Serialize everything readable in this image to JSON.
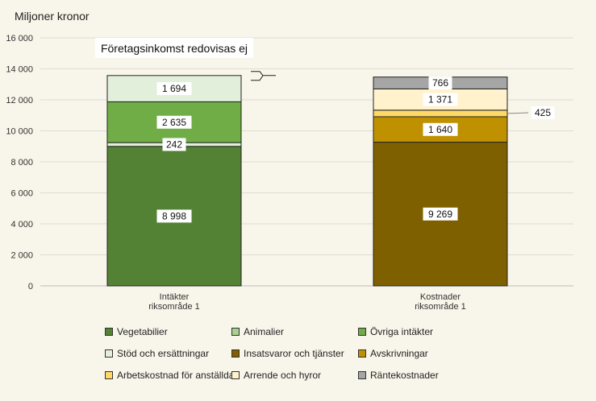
{
  "chart_data": {
    "type": "bar",
    "stacked": true,
    "ylabel": "Miljoner kronor",
    "ylim": [
      0,
      16000
    ],
    "yticks": [
      0,
      2000,
      4000,
      6000,
      8000,
      10000,
      12000,
      14000,
      16000
    ],
    "ytick_labels": [
      "0",
      "2 000",
      "4 000",
      "6 000",
      "8 000",
      "10 000",
      "12 000",
      "14 000",
      "16 000"
    ],
    "grid": true,
    "categories": [
      "Intäkter riksområde 1",
      "Kostnader riksområde 1"
    ],
    "category_lines": [
      [
        "Intäkter",
        "riksområde 1"
      ],
      [
        "Kostnader",
        "riksområde 1"
      ]
    ],
    "annotation": "Företagsinkomst redovisas ej",
    "series": [
      {
        "name": "Vegetabilier",
        "color": "#548235",
        "values": [
          8998,
          0
        ],
        "labels": [
          "8 998",
          ""
        ]
      },
      {
        "name": "Animalier",
        "color": "#a9d08e",
        "values": [
          0,
          0
        ],
        "labels": [
          "",
          ""
        ]
      },
      {
        "name": "Övriga intäkter",
        "color": "#70ad47",
        "values": [
          2635,
          0
        ],
        "labels": [
          "2 635",
          ""
        ]
      },
      {
        "name": "Stöd och ersättningar",
        "color": "#e2efda",
        "values": [
          1694,
          0
        ],
        "labels": [
          "1 694",
          ""
        ]
      },
      {
        "name": "Insatsvaror och tjänster",
        "color": "#7f6000",
        "values": [
          0,
          9269
        ],
        "labels": [
          "",
          "9 269"
        ]
      },
      {
        "name": "Avskrivningar",
        "color": "#bf9000",
        "values": [
          0,
          1640
        ],
        "labels": [
          "",
          "1 640"
        ]
      },
      {
        "name": "Arbetskostnad för anställda",
        "color": "#ffd966",
        "values": [
          0,
          425
        ],
        "labels": [
          "",
          "425"
        ]
      },
      {
        "name": "Arrende och hyror",
        "color": "#fff2cc",
        "values": [
          0,
          1371
        ],
        "labels": [
          "",
          "1 371"
        ]
      },
      {
        "name": "Räntekostnader",
        "color": "#a6a6a6",
        "values": [
          0,
          766
        ],
        "labels": [
          "",
          "766"
        ]
      }
    ],
    "extra_segment": {
      "category": 0,
      "after_series": "Vegetabilier",
      "value": 242,
      "label": "242",
      "color": "#e2efda"
    },
    "legend_position": "bottom"
  }
}
